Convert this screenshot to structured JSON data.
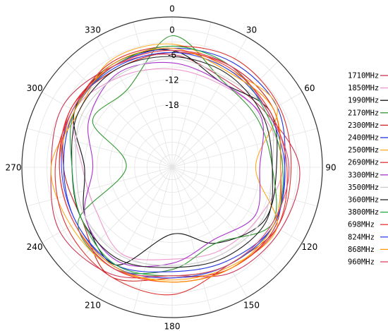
{
  "chart_data": {
    "type": "polar-line",
    "title": "",
    "angle_unit": "deg",
    "angle_zero": "top",
    "angle_direction": "clockwise",
    "angle_ticks": [
      0,
      30,
      60,
      90,
      120,
      150,
      180,
      210,
      240,
      270,
      300,
      330
    ],
    "angle_tick_labels": [
      "0",
      "30",
      "60",
      "90",
      "120",
      "150",
      "180",
      "210",
      "240",
      "270",
      "300",
      "330"
    ],
    "radial_range": [
      -33,
      3
    ],
    "radial_ticks": [
      0,
      -6,
      -12,
      -18
    ],
    "radial_tick_labels": [
      "0",
      "-6",
      "-12",
      "-18"
    ],
    "grid": true,
    "legend_position": "right",
    "series": [
      {
        "name": "1710MHz",
        "color": "#cc3355",
        "angles": [
          0,
          30,
          60,
          90,
          120,
          150,
          180,
          210,
          240,
          270,
          300,
          330
        ],
        "values": [
          -6.0,
          -8.5,
          -7.0,
          -2.5,
          -3.0,
          -4.0,
          -7.0,
          -3.5,
          -2.0,
          -4.0,
          -3.0,
          -5.0
        ]
      },
      {
        "name": "1850MHz",
        "color": "#ee99cc",
        "angles": [
          0,
          30,
          60,
          90,
          120,
          150,
          180,
          210,
          240,
          270,
          300,
          330
        ],
        "values": [
          -9.5,
          -10.0,
          -8.0,
          -6.5,
          -9.0,
          -10.0,
          -11.0,
          -9.0,
          -12.0,
          -11.5,
          -6.0,
          -8.0
        ]
      },
      {
        "name": "1990MHz",
        "color": "#111111",
        "angles": [
          0,
          30,
          60,
          90,
          120,
          150,
          180,
          210,
          240,
          270,
          300,
          330
        ],
        "values": [
          -5.0,
          -9.5,
          -6.0,
          -8.0,
          -7.5,
          -12.0,
          -17.0,
          -6.0,
          -9.0,
          -12.0,
          -6.0,
          -4.5
        ]
      },
      {
        "name": "2170MHz",
        "color": "#339933",
        "angles": [
          0,
          30,
          60,
          90,
          120,
          150,
          180,
          210,
          240,
          270,
          300,
          330
        ],
        "values": [
          -1.5,
          -9.0,
          -9.5,
          -9.0,
          -5.5,
          -12.0,
          -8.5,
          -5.0,
          -7.0,
          -22.0,
          -11.0,
          -11.5
        ]
      },
      {
        "name": "2300MHz",
        "color": "#cc2222",
        "angles": [
          0,
          30,
          60,
          90,
          120,
          150,
          180,
          210,
          240,
          270,
          300,
          330
        ],
        "values": [
          -5.5,
          -5.0,
          -5.0,
          -7.0,
          -4.5,
          -5.0,
          -6.5,
          -3.0,
          -8.0,
          -7.0,
          -5.0,
          -6.0
        ]
      },
      {
        "name": "2400MHz",
        "color": "#2233dd",
        "angles": [
          0,
          30,
          60,
          90,
          120,
          150,
          180,
          210,
          240,
          270,
          300,
          330
        ],
        "values": [
          -4.5,
          -4.0,
          -4.0,
          -6.0,
          -5.0,
          -7.0,
          -8.0,
          -6.0,
          -6.5,
          -7.0,
          -6.0,
          -5.0
        ]
      },
      {
        "name": "2500MHz",
        "color": "#ffaa22",
        "angles": [
          0,
          30,
          60,
          90,
          120,
          150,
          180,
          210,
          240,
          270,
          300,
          330
        ],
        "values": [
          -3.5,
          -6.0,
          -4.0,
          -13.0,
          -4.0,
          -5.5,
          -6.0,
          -5.0,
          -5.0,
          -4.0,
          -7.0,
          -3.5
        ]
      },
      {
        "name": "2690MHz",
        "color": "#dd3333",
        "angles": [
          0,
          30,
          60,
          90,
          120,
          150,
          180,
          210,
          240,
          270,
          300,
          330
        ],
        "values": [
          -4.0,
          -3.0,
          -3.5,
          -4.5,
          -4.0,
          -6.0,
          -2.5,
          -3.0,
          -4.0,
          -5.0,
          -5.5,
          -4.0
        ]
      },
      {
        "name": "3300MHz",
        "color": "#aa33cc",
        "angles": [
          0,
          30,
          60,
          90,
          120,
          150,
          180,
          210,
          240,
          270,
          300,
          330
        ],
        "values": [
          -8.0,
          -9.5,
          -8.5,
          -12.0,
          -10.0,
          -13.0,
          -10.0,
          -7.0,
          -9.0,
          -14.0,
          -10.0,
          -7.0
        ]
      },
      {
        "name": "3500MHz",
        "color": "#cccccc",
        "angles": [
          0,
          30,
          60,
          90,
          120,
          150,
          180,
          210,
          240,
          270,
          300,
          330
        ],
        "values": [
          -7.0,
          -8.0,
          -6.5,
          -9.0,
          -8.0,
          -9.0,
          -9.5,
          -8.5,
          -9.0,
          -10.0,
          -8.0,
          -7.5
        ]
      },
      {
        "name": "3600MHz",
        "color": "#222222",
        "angles": [
          0,
          30,
          60,
          90,
          120,
          150,
          180,
          210,
          240,
          270,
          300,
          330
        ],
        "values": [
          -6.5,
          -7.0,
          -8.0,
          -9.0,
          -7.0,
          -8.0,
          -9.0,
          -7.5,
          -8.0,
          -9.0,
          -7.0,
          -6.0
        ]
      },
      {
        "name": "3800MHz",
        "color": "#22aa44",
        "angles": [
          0,
          30,
          60,
          90,
          120,
          150,
          180,
          210,
          240,
          270,
          300,
          330
        ],
        "values": [
          -4.0,
          -5.0,
          -7.0,
          -6.5,
          -5.0,
          -6.0,
          -7.0,
          -6.0,
          -8.0,
          -9.0,
          -6.0,
          -5.0
        ]
      },
      {
        "name": "698MHz",
        "color": "#ee3333",
        "angles": [
          0,
          30,
          60,
          90,
          120,
          150,
          180,
          210,
          240,
          270,
          300,
          330
        ],
        "values": [
          -5.0,
          -5.5,
          -6.0,
          -5.5,
          -4.0,
          -5.0,
          -5.5,
          -5.0,
          -6.0,
          -6.0,
          -5.0,
          -5.0
        ]
      },
      {
        "name": "824MHz",
        "color": "#3344ee",
        "angles": [
          0,
          30,
          60,
          90,
          120,
          150,
          180,
          210,
          240,
          270,
          300,
          330
        ],
        "values": [
          -5.5,
          -6.0,
          -6.5,
          -6.0,
          -5.0,
          -6.0,
          -6.5,
          -5.5,
          -6.5,
          -6.5,
          -5.5,
          -5.5
        ]
      },
      {
        "name": "868MHz",
        "color": "#ff9900",
        "angles": [
          0,
          30,
          60,
          90,
          120,
          150,
          180,
          210,
          240,
          270,
          300,
          330
        ],
        "values": [
          -4.5,
          -6.5,
          -5.0,
          -7.0,
          -5.0,
          -5.0,
          -5.5,
          -5.5,
          -6.0,
          -6.0,
          -6.0,
          -4.5
        ]
      },
      {
        "name": "960MHz",
        "color": "#dd4466",
        "angles": [
          0,
          30,
          60,
          90,
          120,
          150,
          180,
          210,
          240,
          270,
          300,
          330
        ],
        "values": [
          -5.0,
          -5.0,
          -6.5,
          -5.0,
          -5.5,
          -6.0,
          -7.0,
          -5.0,
          -6.0,
          -6.0,
          -5.5,
          -5.0
        ]
      }
    ]
  }
}
